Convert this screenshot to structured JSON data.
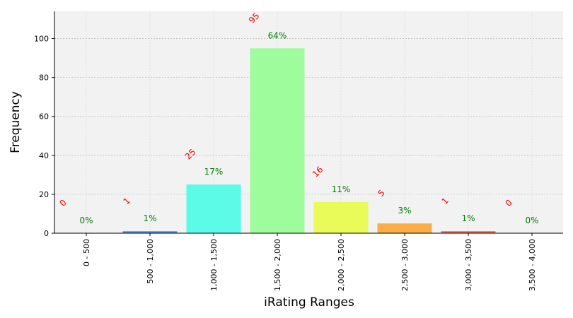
{
  "chart_data": {
    "type": "bar",
    "title": "",
    "xlabel": "iRating Ranges",
    "ylabel": "Frequency",
    "categories": [
      "0 - 500",
      "500 - 1,000",
      "1,000 - 1,500",
      "1,500 - 2,000",
      "2,000 - 2,500",
      "2,500 - 3,000",
      "3,000 - 3,500",
      "3,500 - 4,000"
    ],
    "values": [
      0,
      1,
      25,
      95,
      16,
      5,
      1,
      0
    ],
    "percent_labels": [
      "0%",
      "1%",
      "17%",
      "64%",
      "11%",
      "3%",
      "1%",
      "0%"
    ],
    "count_labels": [
      "0",
      "1",
      "25",
      "95",
      "16",
      "5",
      "1",
      "0"
    ],
    "bar_colors": [
      "#3f7fd6",
      "#4a90e2",
      "#5bfbe8",
      "#9ffc9c",
      "#e8fb58",
      "#fbad48",
      "#f16449",
      "#d84a36"
    ],
    "yticks": [
      0,
      20,
      40,
      60,
      80,
      100
    ],
    "ylim": [
      0,
      114
    ],
    "grid": true,
    "plot_background": "#f2f2f2",
    "count_label_color": "#ff0000",
    "percent_label_color": "#008000"
  }
}
